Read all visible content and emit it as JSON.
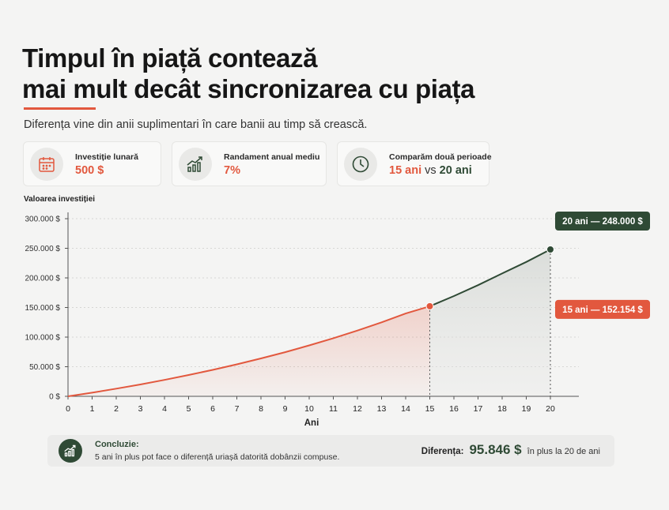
{
  "header": {
    "title_line1": "Timpul în piață contează",
    "title_line2": "mai mult decât sincronizarea cu piața",
    "subtitle": "Diferența vine din anii suplimentari în care banii au timp să crească."
  },
  "cards": {
    "monthly": {
      "label": "Investiție lunară",
      "value": "500 $",
      "icon": "calendar-icon"
    },
    "return": {
      "label": "Randament anual mediu",
      "value": "7%",
      "icon": "growth-chart-icon"
    },
    "compare": {
      "label": "Comparăm două perioade",
      "value_a": "15 ani",
      "vs": "vs",
      "value_b": "20 ani",
      "icon": "clock-icon"
    }
  },
  "chart_data": {
    "type": "area",
    "ylabel": "Valoarea investiției",
    "xlabel": "Ani",
    "xlim": [
      0,
      20
    ],
    "ylim": [
      0,
      300000
    ],
    "xticks": [
      "0",
      "1",
      "2",
      "3",
      "4",
      "5",
      "6",
      "7",
      "8",
      "9",
      "10",
      "11",
      "12",
      "13",
      "14",
      "15",
      "16",
      "17",
      "18",
      "19",
      "20"
    ],
    "yticks": [
      "0 $",
      "50.000 $",
      "100.000 $",
      "150.000 $",
      "200.000 $",
      "250.000 $",
      "300.000 $"
    ],
    "grid": "horizontal-dashed",
    "series": [
      {
        "name": "15 ani",
        "color": "#e2583e",
        "x": [
          0,
          1,
          2,
          3,
          4,
          5,
          6,
          7,
          8,
          9,
          10,
          11,
          12,
          13,
          14,
          15
        ],
        "y": [
          0,
          6200,
          12900,
          20000,
          27700,
          36000,
          44700,
          54000,
          64000,
          74600,
          86000,
          98100,
          111100,
          124900,
          139800,
          152154
        ]
      },
      {
        "name": "20 ani",
        "color": "#2f4a35",
        "x": [
          15,
          16,
          17,
          18,
          19,
          20
        ],
        "y": [
          152154,
          169300,
          187700,
          207400,
          227000,
          248000
        ]
      }
    ],
    "annotations": [
      {
        "label": "20 ani — 248.000 $",
        "x": 20,
        "y": 248000,
        "color": "#2f4a35"
      },
      {
        "label": "15 ani — 152.154 $",
        "x": 15,
        "y": 152154,
        "color": "#e2583e"
      }
    ]
  },
  "conclusion": {
    "title": "Concluzie:",
    "text": "5 ani în plus pot face o diferență uriașă datorită dobânzii compuse.",
    "diff_label": "Diferența:",
    "diff_value": "95.846 $",
    "diff_suffix": "în plus la 20 de ani",
    "icon": "growth-chart-icon"
  }
}
